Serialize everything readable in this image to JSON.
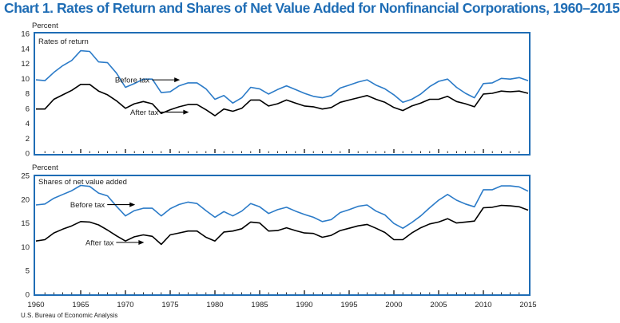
{
  "title": "Chart 1. Rates of Return and Shares of Net Value Added for Nonfinancial Corporations, 1960–2015",
  "source": "U.S. Bureau of Economic Analysis",
  "colors": {
    "title": "#1f6db5",
    "frame": "#1f6db5",
    "before_tax": "#2b7bc8",
    "after_tax": "#000000"
  },
  "chart_data": [
    {
      "type": "line",
      "unit_label": "Percent",
      "panel_label": "Rates of return",
      "ylim": [
        0,
        16
      ],
      "yticks": [
        0,
        2,
        4,
        6,
        8,
        10,
        12,
        14,
        16
      ],
      "xlim": [
        1960,
        2015
      ],
      "grid": false,
      "series": [
        {
          "name": "Before tax",
          "x": [
            1960,
            1961,
            1962,
            1963,
            1964,
            1965,
            1966,
            1967,
            1968,
            1969,
            1970,
            1971,
            1972,
            1973,
            1974,
            1975,
            1976,
            1977,
            1978,
            1979,
            1980,
            1981,
            1982,
            1983,
            1984,
            1985,
            1986,
            1987,
            1988,
            1989,
            1990,
            1991,
            1992,
            1993,
            1994,
            1995,
            1996,
            1997,
            1998,
            1999,
            2000,
            2001,
            2002,
            2003,
            2004,
            2005,
            2006,
            2007,
            2008,
            2009,
            2010,
            2011,
            2012,
            2013,
            2014,
            2015
          ],
          "values": [
            9.8,
            9.7,
            10.8,
            11.7,
            12.4,
            13.7,
            13.6,
            12.2,
            12.1,
            10.7,
            8.8,
            9.3,
            9.9,
            9.9,
            8.1,
            8.2,
            9.0,
            9.4,
            9.4,
            8.6,
            7.2,
            7.7,
            6.7,
            7.4,
            8.8,
            8.6,
            7.9,
            8.5,
            9.0,
            8.5,
            8.0,
            7.6,
            7.4,
            7.7,
            8.7,
            9.1,
            9.5,
            9.8,
            9.1,
            8.6,
            7.8,
            6.8,
            7.2,
            7.9,
            8.9,
            9.6,
            9.9,
            8.8,
            8.0,
            7.4,
            9.3,
            9.4,
            10.0,
            9.9,
            10.1,
            9.7
          ]
        },
        {
          "name": "After tax",
          "x": [
            1960,
            1961,
            1962,
            1963,
            1964,
            1965,
            1966,
            1967,
            1968,
            1969,
            1970,
            1971,
            1972,
            1973,
            1974,
            1975,
            1976,
            1977,
            1978,
            1979,
            1980,
            1981,
            1982,
            1983,
            1984,
            1985,
            1986,
            1987,
            1988,
            1989,
            1990,
            1991,
            1992,
            1993,
            1994,
            1995,
            1996,
            1997,
            1998,
            1999,
            2000,
            2001,
            2002,
            2003,
            2004,
            2005,
            2006,
            2007,
            2008,
            2009,
            2010,
            2011,
            2012,
            2013,
            2014,
            2015
          ],
          "values": [
            5.9,
            5.9,
            7.2,
            7.8,
            8.4,
            9.2,
            9.2,
            8.3,
            7.8,
            7.0,
            6.0,
            6.6,
            6.9,
            6.6,
            5.3,
            5.8,
            6.2,
            6.5,
            6.5,
            5.8,
            5.0,
            5.9,
            5.6,
            6.0,
            7.1,
            7.1,
            6.3,
            6.6,
            7.1,
            6.7,
            6.3,
            6.2,
            5.9,
            6.1,
            6.8,
            7.1,
            7.4,
            7.7,
            7.2,
            6.8,
            6.1,
            5.7,
            6.3,
            6.7,
            7.2,
            7.2,
            7.6,
            6.9,
            6.6,
            6.2,
            7.9,
            8.0,
            8.3,
            8.2,
            8.3,
            8.0
          ]
        }
      ],
      "annotations": [
        {
          "text": "Before tax",
          "series": "Before tax",
          "x": 1976
        },
        {
          "text": "After tax",
          "series": "After tax",
          "x": 1977
        }
      ]
    },
    {
      "type": "line",
      "unit_label": "Percent",
      "panel_label": "Shares of net value added",
      "ylim": [
        0,
        25
      ],
      "yticks": [
        0,
        5,
        10,
        15,
        20,
        25
      ],
      "xlim": [
        1960,
        2015
      ],
      "xticks": [
        1960,
        1965,
        1970,
        1975,
        1980,
        1985,
        1990,
        1995,
        2000,
        2005,
        2010,
        2015
      ],
      "grid": false,
      "series": [
        {
          "name": "Before tax",
          "x": [
            1960,
            1961,
            1962,
            1963,
            1964,
            1965,
            1966,
            1967,
            1968,
            1969,
            1970,
            1971,
            1972,
            1973,
            1974,
            1975,
            1976,
            1977,
            1978,
            1979,
            1980,
            1981,
            1982,
            1983,
            1984,
            1985,
            1986,
            1987,
            1988,
            1989,
            1990,
            1991,
            1992,
            1993,
            1994,
            1995,
            1996,
            1997,
            1998,
            1999,
            2000,
            2001,
            2002,
            2003,
            2004,
            2005,
            2006,
            2007,
            2008,
            2009,
            2010,
            2011,
            2012,
            2013,
            2014,
            2015
          ],
          "values": [
            18.8,
            19.0,
            20.2,
            21.0,
            21.8,
            22.9,
            22.7,
            21.3,
            20.7,
            18.5,
            16.5,
            17.6,
            18.1,
            18.1,
            16.5,
            18.0,
            18.9,
            19.4,
            19.1,
            17.6,
            16.2,
            17.4,
            16.5,
            17.5,
            19.1,
            18.4,
            17.0,
            17.8,
            18.3,
            17.5,
            16.8,
            16.2,
            15.3,
            15.7,
            17.2,
            17.8,
            18.5,
            18.8,
            17.5,
            16.7,
            14.9,
            13.9,
            15.1,
            16.5,
            18.2,
            19.8,
            21.0,
            19.8,
            19.0,
            18.4,
            22.0,
            22.0,
            22.8,
            22.8,
            22.6,
            21.7
          ]
        },
        {
          "name": "After tax",
          "x": [
            1960,
            1961,
            1962,
            1963,
            1964,
            1965,
            1966,
            1967,
            1968,
            1969,
            1970,
            1971,
            1972,
            1973,
            1974,
            1975,
            1976,
            1977,
            1978,
            1979,
            1980,
            1981,
            1982,
            1983,
            1984,
            1985,
            1986,
            1987,
            1988,
            1989,
            1990,
            1991,
            1992,
            1993,
            1994,
            1995,
            1996,
            1997,
            1998,
            1999,
            2000,
            2001,
            2002,
            2003,
            2004,
            2005,
            2006,
            2007,
            2008,
            2009,
            2010,
            2011,
            2012,
            2013,
            2014,
            2015
          ],
          "values": [
            11.2,
            11.5,
            12.9,
            13.7,
            14.4,
            15.3,
            15.2,
            14.6,
            13.5,
            12.3,
            11.2,
            12.1,
            12.5,
            12.2,
            10.5,
            12.5,
            12.9,
            13.3,
            13.3,
            12.0,
            11.2,
            13.1,
            13.3,
            13.8,
            15.2,
            15.0,
            13.3,
            13.4,
            14.0,
            13.4,
            12.9,
            12.8,
            12.0,
            12.4,
            13.4,
            13.9,
            14.4,
            14.7,
            13.9,
            13.0,
            11.5,
            11.5,
            12.9,
            14.0,
            14.8,
            15.2,
            15.9,
            15.0,
            15.2,
            15.4,
            18.2,
            18.3,
            18.7,
            18.6,
            18.4,
            17.7
          ]
        }
      ],
      "annotations": [
        {
          "text": "Before tax",
          "series": "Before tax",
          "x": 1971
        },
        {
          "text": "After tax",
          "series": "After tax",
          "x": 1972
        }
      ]
    }
  ]
}
